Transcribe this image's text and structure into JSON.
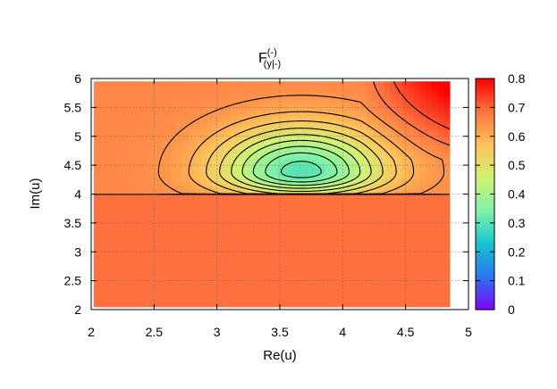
{
  "chart_data": {
    "type": "heatmap",
    "title": {
      "base": "F",
      "superscript": "(-)",
      "subscript": "(y|-)"
    },
    "xlabel": "Re(u)",
    "ylabel": "Im(u)",
    "xlim": [
      2,
      5
    ],
    "ylim": [
      2,
      6
    ],
    "x_ticks": [
      2,
      2.5,
      3,
      3.5,
      4,
      4.5,
      5
    ],
    "y_ticks": [
      2,
      2.5,
      3,
      3.5,
      4,
      4.5,
      5,
      5.5,
      6
    ],
    "x_tick_labels": [
      "2",
      "2.5",
      "3",
      "3.5",
      "4",
      "4.5",
      "5"
    ],
    "y_tick_labels": [
      "2",
      "2.5",
      "3",
      "3.5",
      "4",
      "4.5",
      "5",
      "5.5",
      "6"
    ],
    "data_extent": {
      "x": [
        2.02,
        4.85
      ],
      "y": [
        2.05,
        5.95
      ]
    },
    "grid": true,
    "colorbar": {
      "range": [
        0,
        0.8
      ],
      "ticks": [
        0,
        0.1,
        0.2,
        0.3,
        0.4,
        0.5,
        0.6,
        0.7,
        0.8
      ],
      "tick_labels": [
        "0",
        "0.1",
        "0.2",
        "0.3",
        "0.4",
        "0.5",
        "0.6",
        "0.7",
        "0.8"
      ],
      "palette": [
        "#8000ff",
        "#2a75ee",
        "#17c3d1",
        "#7ff3a7",
        "#d1f374",
        "#ffc35a",
        "#ff7541",
        "#ff0000"
      ]
    },
    "field": {
      "lower_region_value": 0.69,
      "upper_background_value": 0.66,
      "minimum": {
        "x": 3.67,
        "y": 4.38,
        "value": 0.3
      },
      "upper_right_value": 0.8,
      "boundary_y": 4.0
    },
    "contour_levels": [
      0.32,
      0.36,
      0.4,
      0.44,
      0.48,
      0.52,
      0.56,
      0.6,
      0.64,
      0.68,
      0.72
    ]
  }
}
